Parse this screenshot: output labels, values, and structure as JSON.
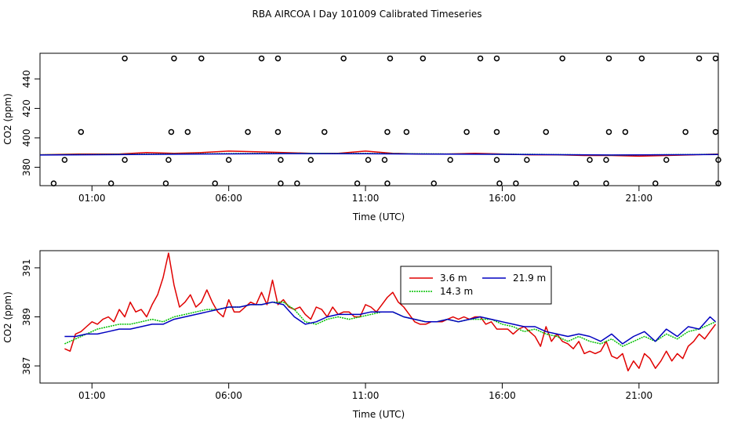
{
  "title": "RBA AIRCOA I  Day 101009  Calibrated Timeseries",
  "chart_data": [
    {
      "type": "line",
      "xlabel": "Time (UTC)",
      "ylabel": "CO2 (ppm)",
      "xlim": [
        -0.9,
        23.9
      ],
      "ylim": [
        367.5,
        457.5
      ],
      "x_ticks": [
        1,
        6,
        11,
        16,
        21
      ],
      "x_tick_labels": [
        "01:00",
        "06:00",
        "11:00",
        "16:00",
        "21:00"
      ],
      "y_ticks": [
        380,
        400,
        420,
        440
      ],
      "y_tick_labels": [
        "380",
        "400",
        "420",
        "440"
      ],
      "grid": false,
      "series": [
        {
          "color": "#e00000",
          "x": [
            -0.9,
            0.5,
            2,
            3,
            4,
            5,
            6,
            7,
            8,
            9,
            10,
            11,
            12,
            13,
            14,
            15,
            16,
            17,
            18,
            19,
            20,
            21,
            22,
            23,
            23.9
          ],
          "values": [
            388.5,
            389,
            389,
            390,
            389.5,
            390,
            391,
            390.5,
            390,
            389.5,
            389.5,
            391,
            389.5,
            389,
            389,
            389.5,
            389,
            388.5,
            388.5,
            388,
            388,
            387.5,
            388,
            388.5,
            389
          ]
        },
        {
          "color": "#00c000",
          "x": [
            -0.9,
            2,
            5,
            8,
            11,
            14,
            17,
            20,
            23.9
          ],
          "values": [
            388.5,
            388.8,
            389.2,
            389.5,
            389.4,
            389,
            388.8,
            388.2,
            388.8
          ]
        },
        {
          "color": "#0000c0",
          "x": [
            -0.9,
            2,
            5,
            8,
            11,
            14,
            17,
            20,
            23.9
          ],
          "values": [
            388.3,
            388.6,
            389,
            389.3,
            389.2,
            388.9,
            388.7,
            388.3,
            388.7
          ]
        },
        {
          "type": "scatter",
          "marker": "circle-open",
          "color": "#000000",
          "x": [
            2.2,
            4.0,
            5.0,
            7.2,
            7.8,
            10.2,
            11.9,
            13.1,
            15.2,
            15.8,
            18.2,
            19.9,
            21.1,
            23.2,
            23.8
          ],
          "values": [
            454,
            454,
            454,
            454,
            454,
            454,
            454,
            454,
            454,
            454,
            454,
            454,
            454,
            454,
            454
          ]
        },
        {
          "type": "scatter",
          "marker": "circle-open",
          "color": "#000000",
          "x": [
            0.6,
            3.9,
            4.5,
            6.7,
            7.8,
            9.5,
            11.8,
            12.5,
            14.7,
            15.8,
            17.6,
            19.9,
            20.5,
            22.7,
            23.8
          ],
          "values": [
            404,
            404,
            404,
            404,
            404,
            404,
            404,
            404,
            404,
            404,
            404,
            404,
            404,
            404,
            404
          ]
        },
        {
          "type": "scatter",
          "marker": "circle-open",
          "color": "#000000",
          "x": [
            0.0,
            2.2,
            3.8,
            6.0,
            7.9,
            9.0,
            11.1,
            11.7,
            14.1,
            15.8,
            16.9,
            19.2,
            19.8,
            22.0,
            23.9
          ],
          "values": [
            385,
            385,
            385,
            385,
            385,
            385,
            385,
            385,
            385,
            385,
            385,
            385,
            385,
            385,
            385
          ]
        },
        {
          "type": "scatter",
          "marker": "circle-open",
          "color": "#000000",
          "x": [
            -0.4,
            1.7,
            3.7,
            5.5,
            7.9,
            8.5,
            10.7,
            11.8,
            13.5,
            15.9,
            16.5,
            18.7,
            19.8,
            21.6,
            23.9
          ],
          "values": [
            369,
            369,
            369,
            369,
            369,
            369,
            369,
            369,
            369,
            369,
            369,
            369,
            369,
            369,
            369
          ]
        }
      ]
    },
    {
      "type": "line",
      "xlabel": "Time (UTC)",
      "ylabel": "CO2 (ppm)",
      "xlim": [
        -0.9,
        23.9
      ],
      "ylim": [
        386.3,
        391.7
      ],
      "x_ticks": [
        1,
        6,
        11,
        16,
        21
      ],
      "x_tick_labels": [
        "01:00",
        "06:00",
        "11:00",
        "16:00",
        "21:00"
      ],
      "y_ticks": [
        387,
        389,
        391
      ],
      "y_tick_labels": [
        "387",
        "389",
        "391"
      ],
      "grid": false,
      "legend": {
        "position": "top-center",
        "columns": 2
      },
      "series": [
        {
          "name": "3.6 m",
          "color": "#e00000",
          "x": [
            0.0,
            0.2,
            0.4,
            0.6,
            0.8,
            1.0,
            1.2,
            1.4,
            1.6,
            1.8,
            2.0,
            2.2,
            2.4,
            2.6,
            2.8,
            3.0,
            3.2,
            3.4,
            3.6,
            3.8,
            4.0,
            4.2,
            4.4,
            4.6,
            4.8,
            5.0,
            5.2,
            5.4,
            5.6,
            5.8,
            6.0,
            6.2,
            6.4,
            6.6,
            6.8,
            7.0,
            7.2,
            7.4,
            7.6,
            7.8,
            8.0,
            8.2,
            8.4,
            8.6,
            8.8,
            9.0,
            9.2,
            9.4,
            9.6,
            9.8,
            10.0,
            10.2,
            10.4,
            10.6,
            10.8,
            11.0,
            11.2,
            11.4,
            11.6,
            11.8,
            12.0,
            12.2,
            12.4,
            12.6,
            12.8,
            13.0,
            13.2,
            13.4,
            13.6,
            13.8,
            14.0,
            14.2,
            14.4,
            14.6,
            14.8,
            15.0,
            15.2,
            15.4,
            15.6,
            15.8,
            16.0,
            16.2,
            16.4,
            16.6,
            16.8,
            17.0,
            17.2,
            17.4,
            17.6,
            17.8,
            18.0,
            18.2,
            18.4,
            18.6,
            18.8,
            19.0,
            19.2,
            19.4,
            19.6,
            19.8,
            20.0,
            20.2,
            20.4,
            20.6,
            20.8,
            21.0,
            21.2,
            21.4,
            21.6,
            21.8,
            22.0,
            22.2,
            22.4,
            22.6,
            22.8,
            23.0,
            23.2,
            23.4,
            23.6,
            23.8
          ],
          "values": [
            387.7,
            387.6,
            388.3,
            388.4,
            388.6,
            388.8,
            388.7,
            388.9,
            389.0,
            388.8,
            389.3,
            389.0,
            389.6,
            389.2,
            389.3,
            389.0,
            389.5,
            389.9,
            390.6,
            391.6,
            390.3,
            389.4,
            389.6,
            389.9,
            389.4,
            389.6,
            390.1,
            389.6,
            389.2,
            389.0,
            389.7,
            389.2,
            389.2,
            389.4,
            389.6,
            389.5,
            390.0,
            389.5,
            390.5,
            389.5,
            389.7,
            389.4,
            389.3,
            389.4,
            389.1,
            388.9,
            389.4,
            389.3,
            389.0,
            389.4,
            389.1,
            389.2,
            389.2,
            389.0,
            389.0,
            389.5,
            389.4,
            389.2,
            389.5,
            389.8,
            390.0,
            389.6,
            389.4,
            389.1,
            388.8,
            388.7,
            388.7,
            388.8,
            388.8,
            388.8,
            388.9,
            389.0,
            388.9,
            389.0,
            388.9,
            389.0,
            389.0,
            388.7,
            388.8,
            388.5,
            388.5,
            388.5,
            388.3,
            388.5,
            388.6,
            388.4,
            388.2,
            387.8,
            388.6,
            388.0,
            388.3,
            388.0,
            387.9,
            387.7,
            388.0,
            387.5,
            387.6,
            387.5,
            387.6,
            388.0,
            387.4,
            387.3,
            387.5,
            386.8,
            387.2,
            386.9,
            387.5,
            387.3,
            386.9,
            387.2,
            387.6,
            387.2,
            387.5,
            387.3,
            387.8,
            388.0,
            388.3,
            388.1,
            388.4,
            388.7
          ]
        },
        {
          "name": "14.3 m",
          "color": "#00c000",
          "x": [
            0.0,
            0.4,
            0.8,
            1.2,
            1.6,
            2.0,
            2.4,
            2.8,
            3.2,
            3.6,
            4.0,
            4.4,
            4.8,
            5.2,
            5.6,
            6.0,
            6.4,
            6.8,
            7.2,
            7.6,
            8.0,
            8.4,
            8.8,
            9.2,
            9.6,
            10.0,
            10.4,
            10.8,
            11.2,
            11.6,
            12.0,
            12.4,
            12.8,
            13.2,
            13.6,
            14.0,
            14.4,
            14.8,
            15.2,
            15.6,
            16.0,
            16.4,
            16.8,
            17.2,
            17.6,
            18.0,
            18.4,
            18.8,
            19.2,
            19.6,
            20.0,
            20.4,
            20.8,
            21.2,
            21.6,
            22.0,
            22.4,
            22.8,
            23.2,
            23.6,
            23.8
          ],
          "values": [
            387.9,
            388.1,
            388.3,
            388.5,
            388.6,
            388.7,
            388.7,
            388.8,
            388.9,
            388.8,
            389.0,
            389.1,
            389.2,
            389.3,
            389.3,
            389.4,
            389.4,
            389.5,
            389.5,
            389.6,
            389.6,
            389.3,
            388.8,
            388.7,
            388.9,
            389.0,
            388.9,
            389.0,
            389.1,
            389.2,
            389.2,
            389.0,
            388.9,
            388.8,
            388.8,
            388.9,
            388.8,
            388.9,
            388.9,
            388.9,
            388.7,
            388.6,
            388.4,
            388.5,
            388.3,
            388.2,
            388.0,
            388.2,
            388.0,
            387.9,
            388.1,
            387.8,
            388.0,
            388.2,
            388.0,
            388.3,
            388.1,
            388.4,
            388.5,
            388.7,
            388.8
          ]
        },
        {
          "name": "21.9 m",
          "color": "#0000c0",
          "x": [
            0.0,
            0.4,
            0.8,
            1.2,
            1.6,
            2.0,
            2.4,
            2.8,
            3.2,
            3.6,
            4.0,
            4.4,
            4.8,
            5.2,
            5.6,
            6.0,
            6.4,
            6.8,
            7.2,
            7.6,
            8.0,
            8.4,
            8.8,
            9.2,
            9.6,
            10.0,
            10.4,
            10.8,
            11.2,
            11.6,
            12.0,
            12.4,
            12.8,
            13.2,
            13.6,
            14.0,
            14.4,
            14.8,
            15.2,
            15.6,
            16.0,
            16.4,
            16.8,
            17.2,
            17.6,
            18.0,
            18.4,
            18.8,
            19.2,
            19.6,
            20.0,
            20.4,
            20.8,
            21.2,
            21.6,
            22.0,
            22.4,
            22.8,
            23.2,
            23.6,
            23.8
          ],
          "values": [
            388.2,
            388.2,
            388.3,
            388.3,
            388.4,
            388.5,
            388.5,
            388.6,
            388.7,
            388.7,
            388.9,
            389.0,
            389.1,
            389.2,
            389.3,
            389.4,
            389.4,
            389.5,
            389.5,
            389.6,
            389.5,
            389.0,
            388.7,
            388.8,
            389.0,
            389.1,
            389.1,
            389.1,
            389.2,
            389.2,
            389.2,
            389.0,
            388.9,
            388.8,
            388.8,
            388.9,
            388.8,
            388.9,
            389.0,
            388.9,
            388.8,
            388.7,
            388.6,
            388.6,
            388.4,
            388.3,
            388.2,
            388.3,
            388.2,
            388.0,
            388.3,
            387.9,
            388.2,
            388.4,
            388.0,
            388.5,
            388.2,
            388.6,
            388.5,
            389.0,
            388.8
          ]
        }
      ]
    }
  ]
}
